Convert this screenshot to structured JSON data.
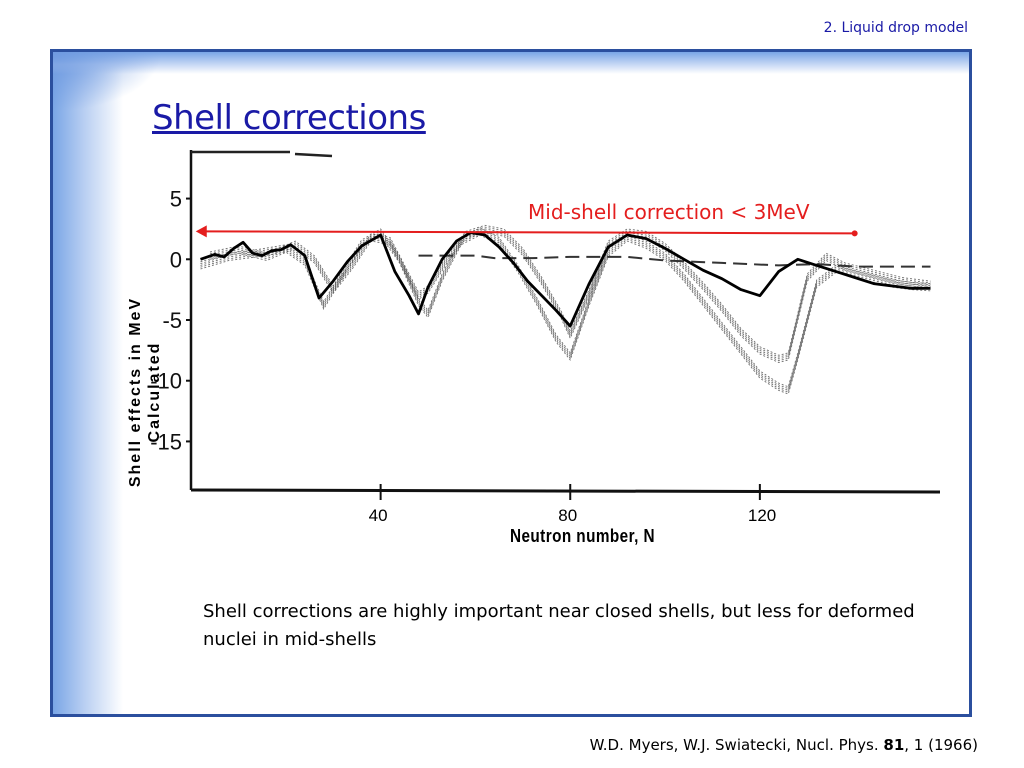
{
  "slide": {
    "section_label": "2. Liquid drop model",
    "title": "Shell corrections",
    "caption": "Shell corrections are highly important near closed shells, but less for deformed nuclei in mid-shells",
    "reference": {
      "prefix": "W.D. Myers, W.J. Swiatecki, Nucl. Phys. ",
      "volume": "81",
      "suffix": ", 1 (1966)"
    }
  },
  "colors": {
    "title": "#1a1aa6",
    "frame_border": "#2b4f9e",
    "annotation": "#e41e1e"
  },
  "chart_data": {
    "type": "line",
    "xlabel": "Neutron number, N",
    "ylabel_line1": "Shell effects in MeV",
    "ylabel_line2": "Calculated",
    "xlim": [
      0,
      158
    ],
    "ylim": [
      -19,
      9
    ],
    "x_tick_labels": [
      "40",
      "80",
      "120"
    ],
    "x_ticks": [
      40,
      80,
      120
    ],
    "y_tick_labels": [
      "5",
      "0",
      "-5",
      "-10",
      "-15"
    ],
    "y_ticks": [
      5,
      0,
      -5,
      -10,
      -15
    ],
    "annotation": {
      "text": "Mid-shell correction < 3MeV",
      "y": 2.3,
      "x_from": 1,
      "x_to": 140
    },
    "series": [
      {
        "style": "main",
        "x": [
          2,
          5,
          7,
          9,
          11,
          13,
          15,
          17,
          19,
          21,
          24,
          27,
          30,
          33,
          36,
          40,
          43,
          46,
          48,
          50,
          53,
          56,
          59,
          62,
          65,
          68,
          71,
          74,
          77,
          80,
          84,
          88,
          92,
          96,
          100,
          104,
          108,
          112,
          116,
          120,
          124,
          128,
          132,
          136,
          140,
          144,
          148,
          152,
          156
        ],
        "y": [
          0,
          0.4,
          0.2,
          0.9,
          1.4,
          0.5,
          0.3,
          0.7,
          0.8,
          1.2,
          0.3,
          -3.2,
          -1.8,
          -0.2,
          1.1,
          2,
          -1,
          -3,
          -4.5,
          -2.3,
          0,
          1.5,
          2.2,
          2,
          1,
          -0.3,
          -1.8,
          -3,
          -4.2,
          -5.5,
          -2,
          1,
          2,
          1.7,
          0.9,
          0,
          -0.9,
          -1.6,
          -2.5,
          -3,
          -1,
          0,
          -0.5,
          -1,
          -1.5,
          -2,
          -2.2,
          -2.4,
          -2.4
        ]
      },
      {
        "style": "band",
        "x": [
          2,
          8,
          14,
          20,
          24,
          28,
          32,
          36,
          40,
          44,
          48,
          50,
          53,
          57,
          61,
          65,
          69,
          73,
          77,
          80,
          84,
          88,
          92,
          96,
          100,
          104,
          108,
          112,
          116,
          120,
          124,
          126,
          128,
          132,
          136,
          140,
          144,
          148,
          152,
          156
        ],
        "y": [
          -0.5,
          0.2,
          0.5,
          0.9,
          -0.2,
          -3.8,
          -1.2,
          1.3,
          2.2,
          0,
          -3.5,
          -4.5,
          -1.5,
          1.5,
          2.3,
          1.5,
          -0.8,
          -3.5,
          -6.5,
          -8,
          -3.5,
          0.5,
          1.8,
          1.2,
          0.2,
          -1.5,
          -3.5,
          -5.5,
          -7.5,
          -9.5,
          -10.5,
          -10.8,
          -8,
          -2,
          -0.8,
          -1.2,
          -1.6,
          -2,
          -2.2,
          -2.3
        ]
      },
      {
        "style": "band",
        "x": [
          4,
          10,
          16,
          22,
          26,
          30,
          34,
          38,
          42,
          46,
          48,
          50,
          54,
          58,
          62,
          66,
          70,
          74,
          78,
          80,
          84,
          88,
          92,
          96,
          100,
          104,
          108,
          112,
          116,
          120,
          124,
          126,
          130,
          134,
          138,
          142,
          146,
          150,
          154,
          156
        ],
        "y": [
          0.3,
          0.8,
          0.2,
          1.2,
          0,
          -2.5,
          -0.5,
          1.8,
          1.5,
          -1.5,
          -3,
          -2.5,
          0,
          2,
          2.5,
          2.2,
          0.6,
          -1.8,
          -4.5,
          -6.2,
          -2.8,
          1.2,
          2.2,
          2,
          1,
          -0.5,
          -2.2,
          -4,
          -6,
          -7.5,
          -8.2,
          -8,
          -1.5,
          0.2,
          -0.6,
          -1,
          -1.4,
          -1.8,
          -2,
          -2.1
        ]
      },
      {
        "style": "dashed",
        "x": [
          48,
          60,
          64,
          72,
          80,
          92,
          100,
          112,
          124,
          132,
          140,
          150,
          156
        ],
        "y": [
          0.3,
          0.3,
          0.1,
          0.1,
          0.2,
          0.2,
          -0.1,
          -0.3,
          -0.5,
          -0.4,
          -0.6,
          -0.6,
          -0.6
        ]
      }
    ]
  }
}
